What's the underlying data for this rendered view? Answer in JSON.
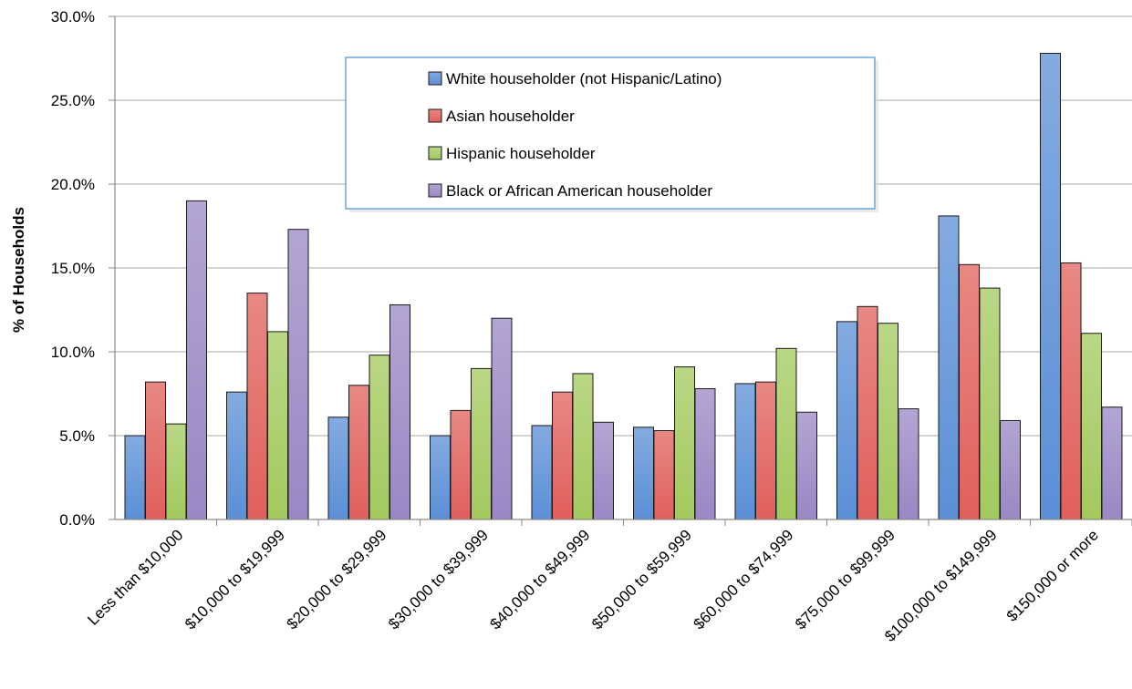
{
  "chart_data": {
    "type": "bar",
    "ylabel": "% of Households",
    "xlabel": "",
    "ylim": [
      0,
      30
    ],
    "y_ticks": [
      "0.0%",
      "5.0%",
      "10.0%",
      "15.0%",
      "20.0%",
      "25.0%",
      "30.0%"
    ],
    "y_tick_values": [
      0,
      5,
      10,
      15,
      20,
      25,
      30
    ],
    "grid": true,
    "legend_position": "top-center",
    "categories": [
      "Less than $10,000",
      "$10,000 to $19,999",
      "$20,000 to $29,999",
      "$30,000 to $39,999",
      "$40,000 to $49,999",
      "$50,000 to $59,999",
      "$60,000 to $74,999",
      "$75,000 to $99,999",
      "$100,000 to $149,999",
      "$150,000 or more"
    ],
    "series": [
      {
        "name": "White householder (not Hispanic/Latino)",
        "color": "#5b8fd6",
        "values": [
          5.0,
          7.6,
          6.1,
          5.0,
          5.6,
          5.5,
          8.1,
          11.8,
          18.1,
          27.8
        ]
      },
      {
        "name": "Asian householder",
        "color": "#e0605b",
        "values": [
          8.2,
          13.5,
          8.0,
          6.5,
          7.6,
          5.3,
          8.2,
          12.7,
          15.2,
          15.3
        ]
      },
      {
        "name": "Hispanic householder",
        "color": "#a3c95e",
        "values": [
          5.7,
          11.2,
          9.8,
          9.0,
          8.7,
          9.1,
          10.2,
          11.7,
          13.8,
          11.1
        ]
      },
      {
        "name": "Black or African American householder",
        "color": "#9a87c4",
        "values": [
          19.0,
          17.3,
          12.8,
          12.0,
          5.8,
          7.8,
          6.4,
          6.6,
          5.9,
          6.7
        ]
      }
    ]
  }
}
